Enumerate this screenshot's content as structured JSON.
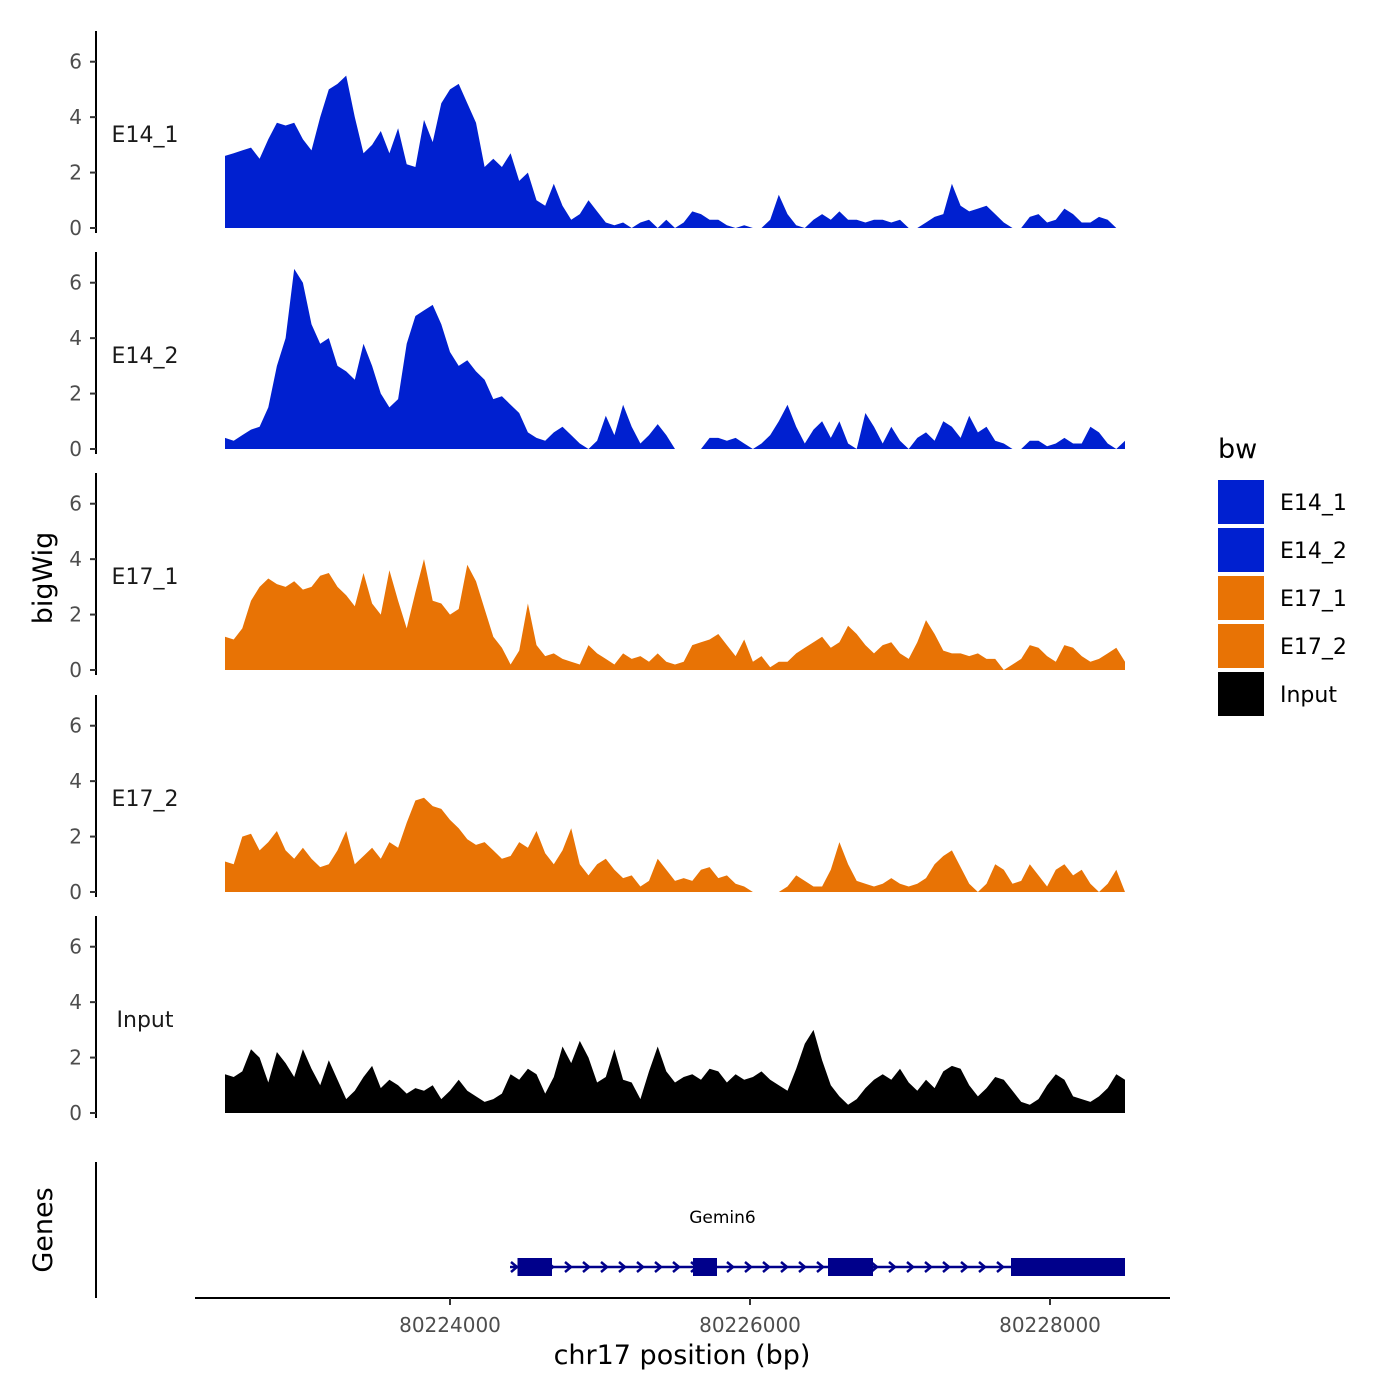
{
  "chart_data": {
    "type": "area",
    "title": "",
    "xlabel": "chr17 position (bp)",
    "ylabel": "bigWig",
    "genes_label": "Genes",
    "xlim": [
      80222300,
      80228800
    ],
    "x_ticks": [
      80224000,
      80226000,
      80228000
    ],
    "x_tick_labels": [
      "80224000",
      "80226000",
      "80228000"
    ],
    "ylim": [
      0,
      7
    ],
    "y_ticks": [
      0,
      2,
      4,
      6
    ],
    "y_tick_labels": [
      "0",
      "2",
      "4",
      "6"
    ],
    "data_range": [
      80222500,
      80228500
    ],
    "legend": {
      "title": "bw",
      "entries": [
        {
          "name": "E14_1",
          "color": "#0020D0"
        },
        {
          "name": "E14_2",
          "color": "#0020D0"
        },
        {
          "name": "E17_1",
          "color": "#E87305"
        },
        {
          "name": "E17_2",
          "color": "#E87305"
        },
        {
          "name": "Input",
          "color": "#000000"
        }
      ]
    },
    "series": [
      {
        "name": "E14_1",
        "color": "#0020D0",
        "values": [
          2.6,
          2.7,
          2.8,
          2.9,
          2.5,
          3.2,
          3.8,
          3.7,
          3.8,
          3.2,
          2.8,
          4.0,
          5.0,
          5.2,
          5.5,
          4.0,
          2.7,
          3.0,
          3.5,
          2.7,
          3.6,
          2.3,
          2.2,
          3.9,
          3.1,
          4.5,
          5.0,
          5.2,
          4.5,
          3.8,
          2.2,
          2.5,
          2.2,
          2.7,
          1.7,
          2.0,
          1.0,
          0.8,
          1.6,
          0.8,
          0.3,
          0.5,
          1.0,
          0.6,
          0.2,
          0.1,
          0.2,
          0.0,
          0.2,
          0.3,
          0.0,
          0.3,
          0.0,
          0.2,
          0.6,
          0.5,
          0.3,
          0.3,
          0.1,
          0.0,
          0.1,
          0.0,
          0.0,
          0.3,
          1.2,
          0.5,
          0.1,
          0.0,
          0.3,
          0.5,
          0.3,
          0.6,
          0.3,
          0.3,
          0.2,
          0.3,
          0.3,
          0.2,
          0.3,
          0.0,
          0.0,
          0.2,
          0.4,
          0.5,
          1.6,
          0.8,
          0.6,
          0.7,
          0.8,
          0.5,
          0.2,
          0.0,
          0.0,
          0.4,
          0.5,
          0.2,
          0.3,
          0.7,
          0.5,
          0.2,
          0.2,
          0.4,
          0.3,
          0.0,
          0.0
        ]
      },
      {
        "name": "E14_2",
        "color": "#0020D0",
        "values": [
          0.4,
          0.3,
          0.5,
          0.7,
          0.8,
          1.5,
          3.0,
          4.0,
          6.5,
          6.0,
          4.5,
          3.8,
          4.0,
          3.0,
          2.8,
          2.5,
          3.8,
          3.0,
          2.0,
          1.5,
          1.8,
          3.8,
          4.8,
          5.0,
          5.2,
          4.5,
          3.5,
          3.0,
          3.2,
          2.8,
          2.5,
          1.8,
          1.9,
          1.6,
          1.3,
          0.6,
          0.4,
          0.3,
          0.6,
          0.8,
          0.5,
          0.2,
          0.0,
          0.3,
          1.2,
          0.5,
          1.6,
          0.8,
          0.2,
          0.5,
          0.9,
          0.5,
          0.0,
          0.0,
          0.0,
          0.0,
          0.4,
          0.4,
          0.3,
          0.4,
          0.2,
          0.0,
          0.2,
          0.5,
          1.0,
          1.6,
          0.8,
          0.2,
          0.7,
          1.0,
          0.4,
          1.0,
          0.2,
          0.0,
          1.3,
          0.8,
          0.2,
          0.8,
          0.3,
          0.0,
          0.4,
          0.6,
          0.3,
          1.0,
          0.8,
          0.4,
          1.2,
          0.6,
          0.8,
          0.3,
          0.2,
          0.0,
          0.0,
          0.3,
          0.3,
          0.1,
          0.2,
          0.4,
          0.2,
          0.2,
          0.8,
          0.6,
          0.2,
          0.0,
          0.3
        ]
      },
      {
        "name": "E17_1",
        "color": "#E87305",
        "values": [
          1.2,
          1.1,
          1.5,
          2.5,
          3.0,
          3.3,
          3.1,
          3.0,
          3.2,
          2.9,
          3.0,
          3.4,
          3.5,
          3.0,
          2.7,
          2.3,
          3.5,
          2.4,
          2.0,
          3.6,
          2.5,
          1.5,
          2.8,
          4.0,
          2.5,
          2.4,
          2.0,
          2.2,
          3.8,
          3.2,
          2.2,
          1.2,
          0.8,
          0.2,
          0.7,
          2.4,
          0.9,
          0.5,
          0.6,
          0.4,
          0.3,
          0.2,
          0.9,
          0.6,
          0.4,
          0.2,
          0.6,
          0.4,
          0.5,
          0.3,
          0.6,
          0.3,
          0.2,
          0.3,
          0.9,
          1.0,
          1.1,
          1.3,
          0.9,
          0.5,
          1.1,
          0.3,
          0.5,
          0.1,
          0.3,
          0.3,
          0.6,
          0.8,
          1.0,
          1.2,
          0.8,
          1.0,
          1.6,
          1.3,
          0.9,
          0.6,
          0.9,
          1.0,
          0.6,
          0.4,
          1.0,
          1.8,
          1.3,
          0.7,
          0.6,
          0.6,
          0.5,
          0.6,
          0.4,
          0.4,
          0.0,
          0.2,
          0.4,
          0.9,
          0.8,
          0.5,
          0.3,
          0.9,
          0.8,
          0.5,
          0.3,
          0.4,
          0.6,
          0.8,
          0.3
        ]
      },
      {
        "name": "E17_2",
        "color": "#E87305",
        "values": [
          1.1,
          1.0,
          2.0,
          2.1,
          1.5,
          1.8,
          2.2,
          1.5,
          1.2,
          1.6,
          1.2,
          0.9,
          1.0,
          1.5,
          2.2,
          1.0,
          1.3,
          1.6,
          1.2,
          1.8,
          1.6,
          2.5,
          3.3,
          3.4,
          3.1,
          3.0,
          2.6,
          2.3,
          1.9,
          1.7,
          1.8,
          1.5,
          1.2,
          1.3,
          1.8,
          1.6,
          2.2,
          1.4,
          1.0,
          1.5,
          2.3,
          1.0,
          0.6,
          1.0,
          1.2,
          0.8,
          0.5,
          0.6,
          0.2,
          0.4,
          1.2,
          0.8,
          0.4,
          0.5,
          0.4,
          0.8,
          0.9,
          0.5,
          0.6,
          0.3,
          0.2,
          0.0,
          0.0,
          0.0,
          0.0,
          0.2,
          0.6,
          0.4,
          0.2,
          0.2,
          0.8,
          1.8,
          1.0,
          0.4,
          0.3,
          0.2,
          0.3,
          0.5,
          0.3,
          0.2,
          0.3,
          0.5,
          1.0,
          1.3,
          1.5,
          0.9,
          0.3,
          0.0,
          0.3,
          1.0,
          0.8,
          0.3,
          0.4,
          1.0,
          0.6,
          0.2,
          0.8,
          1.0,
          0.6,
          0.8,
          0.3,
          0.0,
          0.3,
          0.8,
          0.0
        ]
      },
      {
        "name": "Input",
        "color": "#000000",
        "values": [
          1.4,
          1.3,
          1.5,
          2.3,
          2.0,
          1.1,
          2.2,
          1.8,
          1.3,
          2.3,
          1.6,
          1.0,
          1.9,
          1.2,
          0.5,
          0.8,
          1.3,
          1.7,
          0.9,
          1.2,
          1.0,
          0.7,
          0.9,
          0.8,
          1.0,
          0.5,
          0.8,
          1.2,
          0.8,
          0.6,
          0.4,
          0.5,
          0.7,
          1.4,
          1.2,
          1.6,
          1.4,
          0.7,
          1.3,
          2.4,
          1.8,
          2.6,
          2.0,
          1.1,
          1.3,
          2.3,
          1.2,
          1.1,
          0.5,
          1.5,
          2.4,
          1.5,
          1.1,
          1.3,
          1.4,
          1.2,
          1.6,
          1.5,
          1.1,
          1.4,
          1.2,
          1.3,
          1.5,
          1.2,
          1.0,
          0.8,
          1.6,
          2.5,
          3.0,
          1.9,
          1.0,
          0.6,
          0.3,
          0.5,
          0.9,
          1.2,
          1.4,
          1.2,
          1.6,
          1.1,
          0.8,
          1.2,
          0.9,
          1.5,
          1.7,
          1.6,
          1.0,
          0.6,
          0.9,
          1.3,
          1.2,
          0.8,
          0.4,
          0.3,
          0.5,
          1.0,
          1.4,
          1.2,
          0.6,
          0.5,
          0.4,
          0.6,
          0.9,
          1.4,
          1.2
        ]
      }
    ],
    "genes": [
      {
        "name": "Gemin6",
        "color": "#00008B",
        "strand": "+",
        "start": 80224400,
        "end": 80228500,
        "exons": [
          [
            80224450,
            80224680
          ],
          [
            80225620,
            80225780
          ],
          [
            80226520,
            80226820
          ],
          [
            80227740,
            80228500
          ]
        ]
      }
    ]
  }
}
